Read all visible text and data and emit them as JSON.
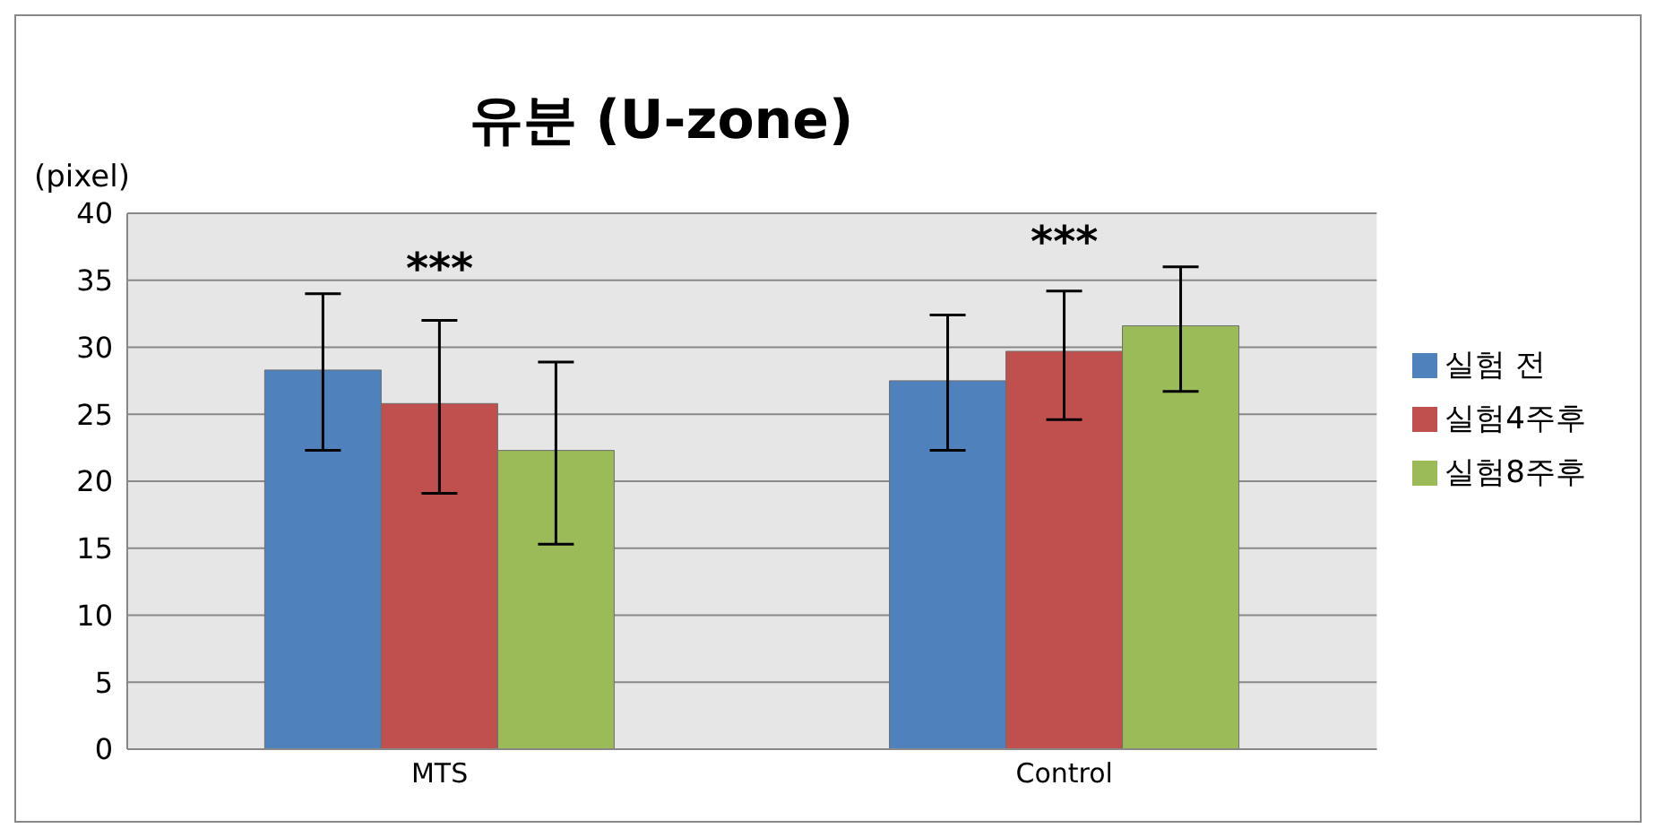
{
  "chart_data": {
    "type": "bar",
    "title": "유분 (U-zone)",
    "ylabel": "(pixel)",
    "categories": [
      "MTS",
      "Control"
    ],
    "series": [
      {
        "name": "실험 전",
        "color": "#4f81bd",
        "values": [
          28.3,
          27.5
        ],
        "errors": [
          [
            22.3,
            34.0
          ],
          [
            22.3,
            32.4
          ]
        ]
      },
      {
        "name": "실험4주후",
        "color": "#c0504d",
        "values": [
          25.8,
          29.7
        ],
        "errors": [
          [
            19.1,
            32.0
          ],
          [
            24.6,
            34.2
          ]
        ]
      },
      {
        "name": "실험8주후",
        "color": "#9bbb59",
        "values": [
          22.3,
          31.6
        ],
        "errors": [
          [
            15.3,
            28.9
          ],
          [
            26.7,
            36.0
          ]
        ]
      }
    ],
    "ylim": [
      0,
      40
    ],
    "yticks": [
      0,
      5,
      10,
      15,
      20,
      25,
      30,
      35,
      40
    ],
    "grid": "y",
    "legend": "right",
    "annotations": [
      "***",
      "***"
    ]
  }
}
